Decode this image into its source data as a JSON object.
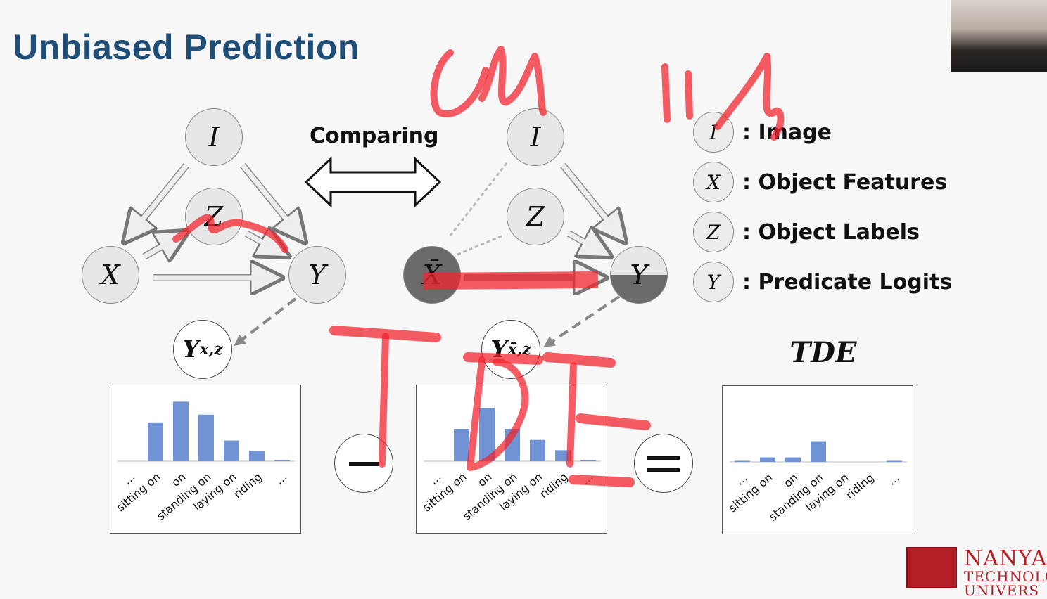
{
  "slide": {
    "title": "Unbiased Prediction",
    "comparing_label": "Comparing",
    "left_graph": {
      "I": "I",
      "Z": "Z",
      "X": "X",
      "Y": "Y"
    },
    "right_graph": {
      "I": "I",
      "Z": "Z",
      "X": "X̄",
      "Y": "Y"
    },
    "legend": [
      {
        "symbol": "I",
        "label": ": Image"
      },
      {
        "symbol": "X",
        "label": ": Object Features"
      },
      {
        "symbol": "Z",
        "label": ": Object Labels"
      },
      {
        "symbol": "Y",
        "label": ": Predicate Logits"
      }
    ],
    "outputs": {
      "left": {
        "main": "Y",
        "sub": "x,z"
      },
      "right": {
        "main": "Y",
        "sub": "x̄,z"
      },
      "tde": "TDE"
    },
    "operators": {
      "minus": "minus",
      "equals": "equals"
    },
    "logo": {
      "line1": "NANYA",
      "line2": "TECHNOLO",
      "line3": "UNIVERS"
    }
  },
  "colors": {
    "title": "#1f4e79",
    "bar": "#6f93d4",
    "annotation": "#f2262f",
    "logo": "#b31f24"
  },
  "chart_data": [
    {
      "type": "bar",
      "categories": [
        "...",
        "sitting on",
        "on",
        "standing on",
        "laying on",
        "riding",
        "..."
      ],
      "values": [
        0,
        0.6,
        0.92,
        0.72,
        0.32,
        0.16,
        0.01
      ]
    },
    {
      "type": "bar",
      "categories": [
        "...",
        "sitting on",
        "on",
        "standing on",
        "laying on",
        "riding",
        "..."
      ],
      "values": [
        0,
        0.5,
        0.82,
        0.5,
        0.33,
        0.17,
        0.01
      ]
    },
    {
      "type": "bar",
      "categories": [
        "...",
        "sitting on",
        "on",
        "standing on",
        "laying on",
        "riding",
        "..."
      ],
      "values": [
        0.01,
        0.07,
        0.07,
        0.32,
        0,
        0,
        0.01
      ]
    }
  ]
}
